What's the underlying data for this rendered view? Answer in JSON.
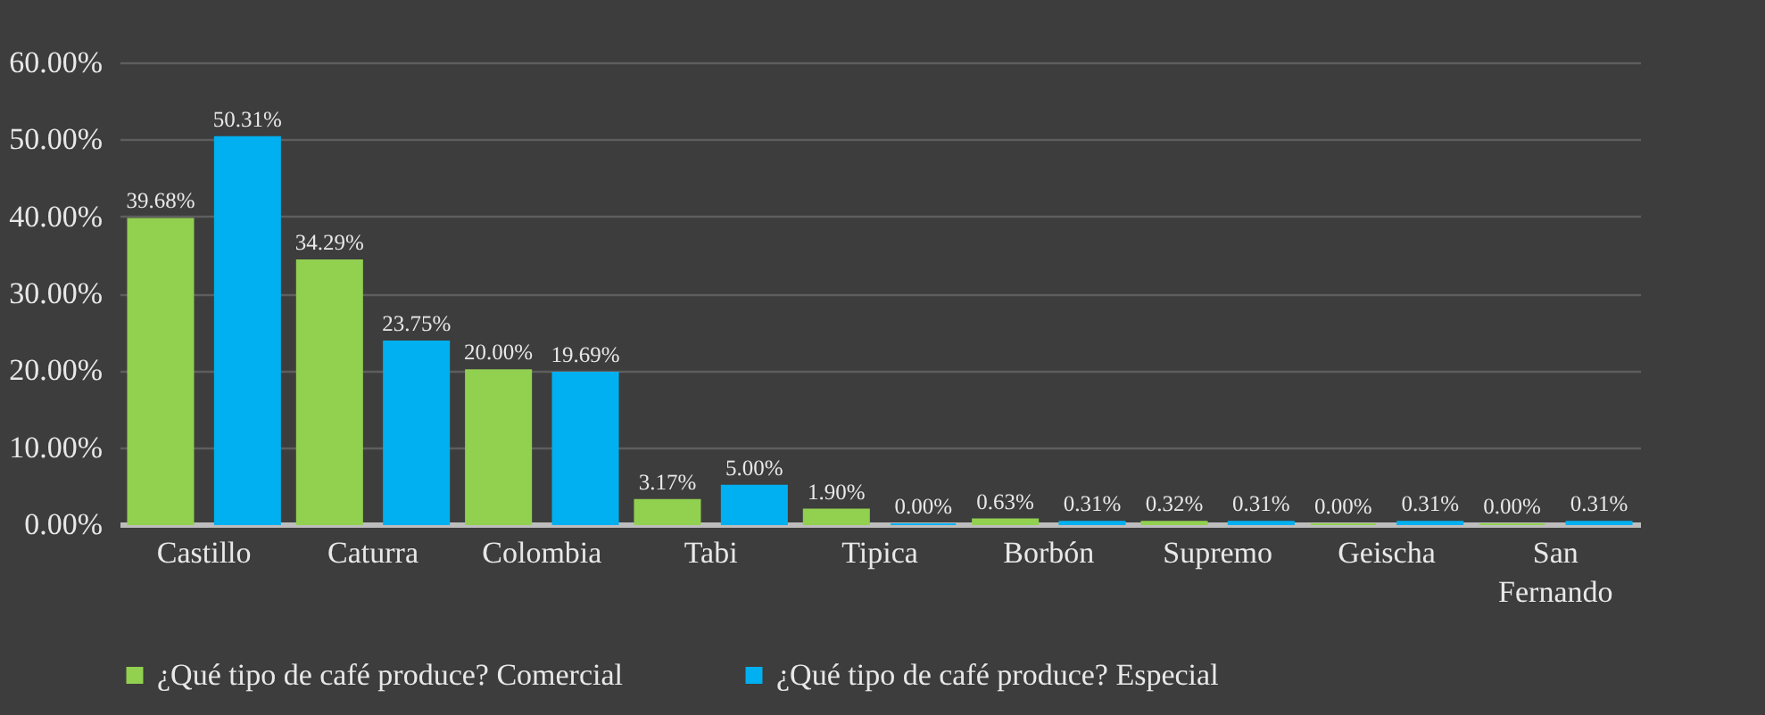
{
  "chart_data": {
    "type": "bar",
    "categories": [
      "Castillo",
      "Caturra",
      "Colombia",
      "Tabi",
      "Tipica",
      "Borbón",
      "Supremo",
      "Geischa",
      "San Fernando"
    ],
    "series": [
      {
        "name": "¿Qué tipo de café  produce? Comercial",
        "color": "#92d050",
        "values": [
          39.68,
          34.29,
          20.0,
          3.17,
          1.9,
          0.63,
          0.32,
          0.0,
          0.0
        ],
        "value_labels": [
          "39.68%",
          "34.29%",
          "20.00%",
          "3.17%",
          "1.90%",
          "0.63%",
          "0.32%",
          "0.00%",
          "0.00%"
        ]
      },
      {
        "name": "¿Qué tipo de café  produce? Especial",
        "color": "#00b0f0",
        "values": [
          50.31,
          23.75,
          19.69,
          5.0,
          0.0,
          0.31,
          0.31,
          0.31,
          0.31
        ],
        "value_labels": [
          "50.31%",
          "23.75%",
          "19.69%",
          "5.00%",
          "0.00%",
          "0.31%",
          "0.31%",
          "0.31%",
          "0.31%"
        ]
      }
    ],
    "ylim": [
      0,
      60
    ],
    "yticks": [
      {
        "value": 0,
        "label": "0.00%"
      },
      {
        "value": 10,
        "label": "10.00%"
      },
      {
        "value": 20,
        "label": "20.00%"
      },
      {
        "value": 30,
        "label": "30.00%"
      },
      {
        "value": 40,
        "label": "40.00%"
      },
      {
        "value": 50,
        "label": "50.00%"
      },
      {
        "value": 60,
        "label": "60.00%"
      }
    ],
    "grid": "y",
    "legend": "bottom"
  }
}
